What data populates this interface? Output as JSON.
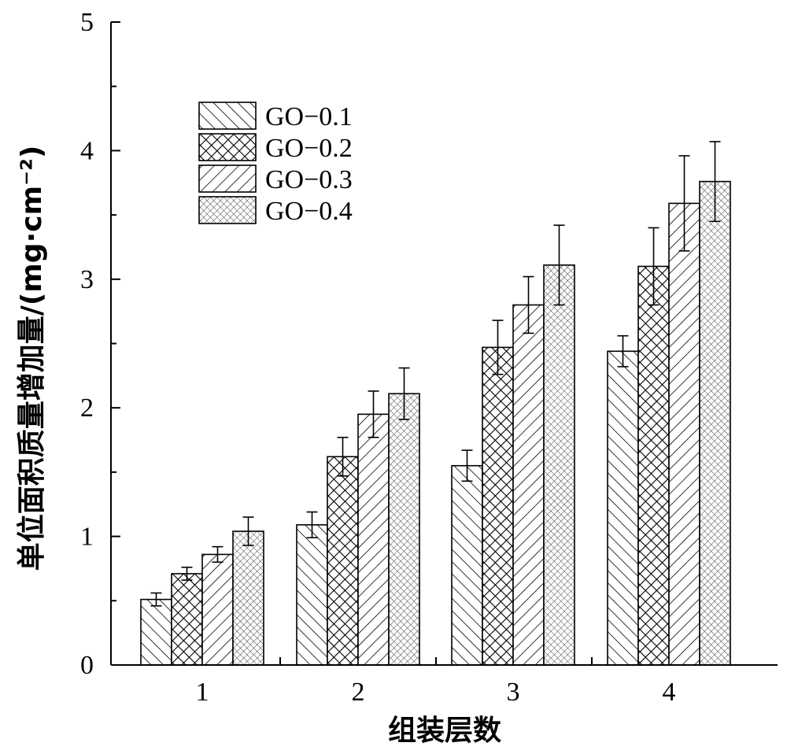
{
  "chart_data": {
    "type": "bar",
    "categories": [
      "1",
      "2",
      "3",
      "4"
    ],
    "series": [
      {
        "name": "GO−0.1",
        "pattern": "diag-right",
        "values": [
          0.51,
          1.09,
          1.55,
          2.44
        ],
        "errors": [
          0.05,
          0.1,
          0.12,
          0.12
        ]
      },
      {
        "name": "GO−0.2",
        "pattern": "crosshatch-dense",
        "values": [
          0.71,
          1.62,
          2.47,
          3.1
        ],
        "errors": [
          0.05,
          0.15,
          0.21,
          0.3
        ]
      },
      {
        "name": "GO−0.3",
        "pattern": "diag-left",
        "values": [
          0.86,
          1.95,
          2.8,
          3.59
        ],
        "errors": [
          0.06,
          0.18,
          0.22,
          0.37
        ]
      },
      {
        "name": "GO−0.4",
        "pattern": "crosshatch-fine",
        "values": [
          1.04,
          2.11,
          3.11,
          3.76
        ],
        "errors": [
          0.11,
          0.2,
          0.31,
          0.31
        ]
      }
    ],
    "yticks": [
      "0",
      "1",
      "2",
      "3",
      "4",
      "5"
    ],
    "ylim": [
      0,
      5
    ],
    "xlabel": "组装层数",
    "ylabel": "单位面积质量增加量/(mg·cm⁻²)",
    "legend_position": "top-left",
    "grid": false,
    "colors": {
      "stroke": "#000000",
      "fill": "#ffffff"
    }
  }
}
